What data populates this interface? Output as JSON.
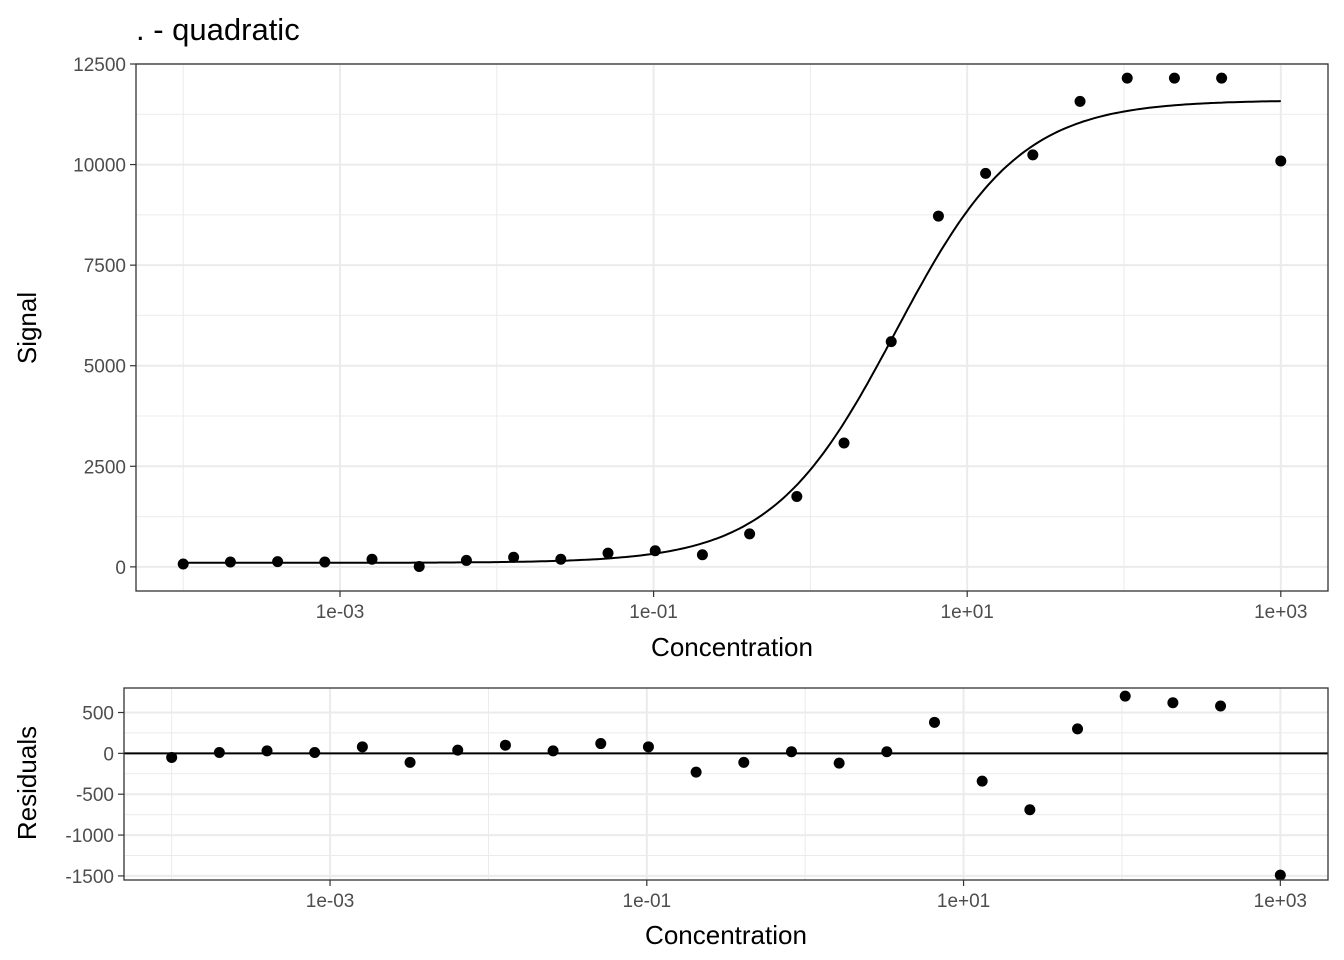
{
  "chart_data": [
    {
      "type": "scatter",
      "title": ". - quadratic",
      "xlabel": "Concentration",
      "ylabel": "Signal",
      "xscale": "log10",
      "xlim": [
        5e-05,
        2000
      ],
      "ylim": [
        -600,
        12500
      ],
      "xticks": [
        0.001,
        0.1,
        10,
        1000
      ],
      "xtick_labels": [
        "1e-03",
        "1e-01",
        "1e+01",
        "1e+03"
      ],
      "yticks": [
        0,
        2500,
        5000,
        7500,
        10000,
        12500
      ],
      "ytick_labels": [
        "0",
        "2500",
        "5000",
        "7500",
        "10000",
        "12500"
      ],
      "grid": true,
      "series": [
        {
          "kind": "points",
          "x": [
            0.0001,
            0.0002,
            0.0004,
            0.0008,
            0.0016,
            0.0032,
            0.0064,
            0.0128,
            0.0256,
            0.0512,
            0.1024,
            0.2048,
            0.4096,
            0.8192,
            1.6384,
            3.2768,
            6.5536,
            13.1072,
            26.2144,
            52.4288,
            104.8576,
            209.7152,
            419.4304,
            1000
          ],
          "y": [
            70,
            120,
            130,
            120,
            190,
            10,
            160,
            240,
            190,
            340,
            400,
            300,
            820,
            1750,
            3080,
            5600,
            8720,
            9780,
            10240,
            11570,
            12150,
            12150,
            12150,
            10090
          ]
        },
        {
          "kind": "fit-curve",
          "model": "4pl",
          "bottom": 100,
          "top": 11600,
          "ec50": 3.5,
          "hill": 1.1,
          "x_range": [
            0.0001,
            1000
          ]
        }
      ]
    },
    {
      "type": "scatter",
      "xlabel": "Concentration",
      "ylabel": "Residuals",
      "xscale": "log10",
      "xlim": [
        5e-05,
        2000
      ],
      "ylim": [
        -1550,
        800
      ],
      "xticks": [
        0.001,
        0.1,
        10,
        1000
      ],
      "xtick_labels": [
        "1e-03",
        "1e-01",
        "1e+01",
        "1e+03"
      ],
      "yticks": [
        -1500,
        -1000,
        -500,
        0,
        500
      ],
      "ytick_labels": [
        "-1500",
        "-1000",
        "-500",
        "0",
        "500"
      ],
      "grid": true,
      "hline": 0,
      "series": [
        {
          "kind": "points",
          "x": [
            0.0001,
            0.0002,
            0.0004,
            0.0008,
            0.0016,
            0.0032,
            0.0064,
            0.0128,
            0.0256,
            0.0512,
            0.1024,
            0.2048,
            0.4096,
            0.8192,
            1.6384,
            3.2768,
            6.5536,
            13.1072,
            26.2144,
            52.4288,
            104.8576,
            209.7152,
            419.4304,
            1000
          ],
          "y": [
            -50,
            10,
            30,
            10,
            80,
            -110,
            40,
            100,
            30,
            120,
            80,
            -230,
            -110,
            20,
            -120,
            20,
            380,
            -340,
            -690,
            300,
            700,
            620,
            580,
            -1490
          ]
        }
      ]
    }
  ]
}
